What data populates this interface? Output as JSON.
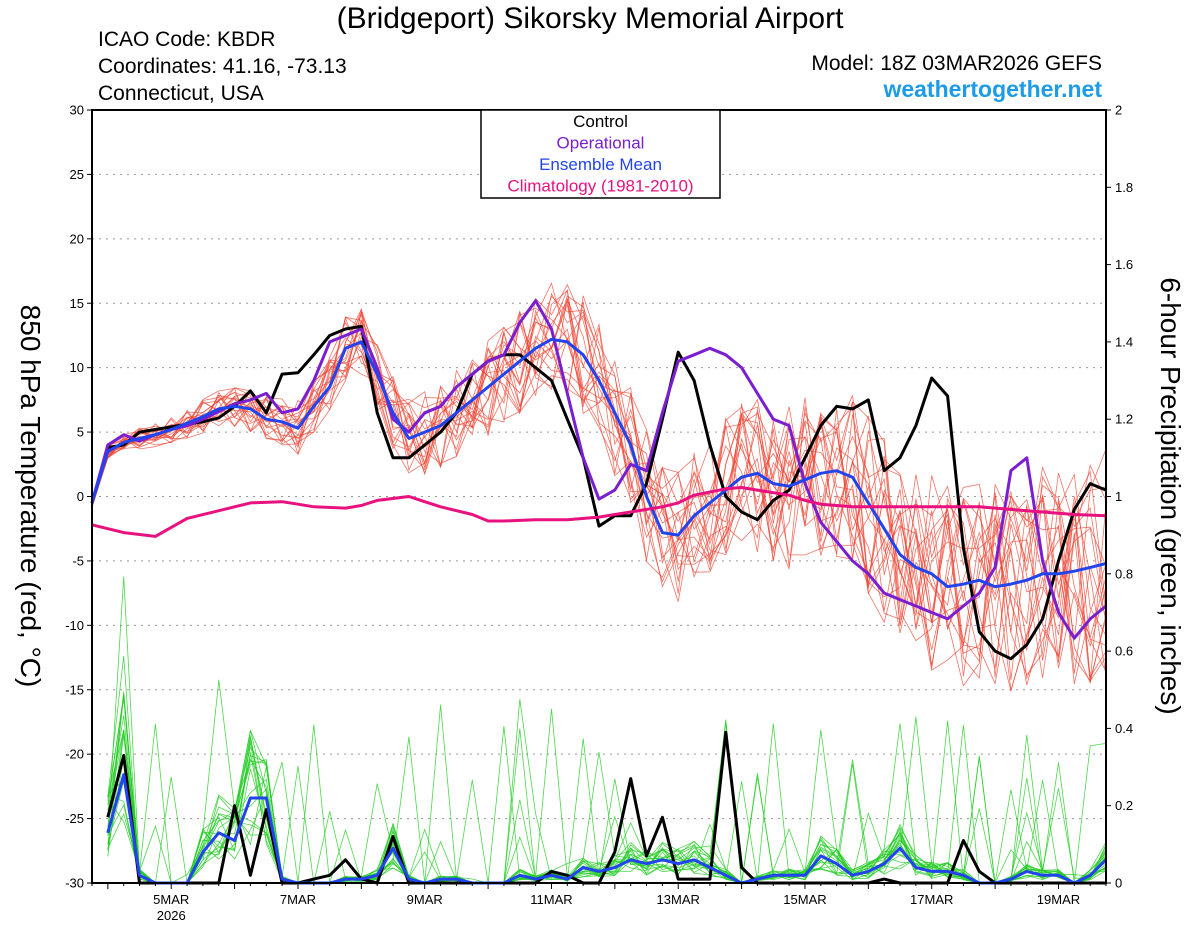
{
  "header": {
    "title": "(Bridgeport) Sikorsky Memorial Airport",
    "icao": "ICAO Code: KBDR",
    "coordinates": "Coordinates: 41.16, -73.13",
    "region": "Connecticut, USA",
    "model": "Model: 18Z 03MAR2026 GEFS",
    "website": "weathertogether.net"
  },
  "colors": {
    "control": "#000000",
    "operational": "#7a1ed0",
    "ensemble_mean": "#2244ee",
    "climatology": "#e8117f",
    "members_temp": "#ee4433",
    "members_precip": "#22cc22",
    "website": "#1e9be6"
  },
  "chart_data": {
    "type": "line",
    "title": "(Bridgeport) Sikorsky Memorial Airport",
    "ylabel_left": "850 hPa Temperature (red, °C)",
    "ylabel_right": "6-hour Precipitation (green, inches)",
    "x_unit": "days since 00Z 03MAR2026",
    "xlim": [
      0.75,
      16.75
    ],
    "ylim_left": [
      -30,
      30
    ],
    "ylim_right": [
      0,
      2
    ],
    "y_ticks_left": [
      -30,
      -25,
      -20,
      -15,
      -10,
      -5,
      0,
      5,
      10,
      15,
      20,
      25,
      30
    ],
    "y_ticks_right": [
      "0",
      "0.2",
      "0.4",
      "0.6",
      "0.8",
      "1",
      "1.2",
      "1.4",
      "1.6",
      "1.8",
      "2"
    ],
    "x_ticks": [
      {
        "day": 2,
        "label": "5MAR",
        "sublabel": "2026"
      },
      {
        "day": 4,
        "label": "7MAR"
      },
      {
        "day": 6,
        "label": "9MAR"
      },
      {
        "day": 8,
        "label": "11MAR"
      },
      {
        "day": 10,
        "label": "13MAR"
      },
      {
        "day": 12,
        "label": "15MAR"
      },
      {
        "day": 14,
        "label": "17MAR"
      },
      {
        "day": 16,
        "label": "19MAR"
      }
    ],
    "grid": true,
    "legend": {
      "position": "top-center",
      "entries": [
        {
          "label": "Control",
          "color": "#000000"
        },
        {
          "label": "Operational",
          "color": "#7a1ed0"
        },
        {
          "label": "Ensemble Mean",
          "color": "#2244ee"
        },
        {
          "label": "Climatology (1981-2010)",
          "color": "#e8117f"
        }
      ]
    },
    "temperature_series": [
      {
        "name": "Control",
        "x": [
          0.75,
          1.0,
          1.25,
          1.5,
          1.75,
          2.0,
          2.25,
          2.5,
          2.75,
          3.0,
          3.25,
          3.5,
          3.75,
          4.0,
          4.25,
          4.5,
          4.75,
          5.0,
          5.25,
          5.5,
          5.75,
          6.0,
          6.25,
          6.5,
          6.75,
          7.0,
          7.25,
          7.5,
          7.75,
          8.0,
          8.25,
          8.5,
          8.75,
          9.0,
          9.25,
          9.5,
          9.75,
          10.0,
          10.25,
          10.5,
          10.75,
          11.0,
          11.25,
          11.5,
          11.75,
          12.0,
          12.25,
          12.5,
          12.75,
          13.0,
          13.25,
          13.5,
          13.75,
          14.0,
          14.25,
          14.5,
          14.75,
          15.0,
          15.25,
          15.5,
          15.75,
          16.0,
          16.25,
          16.5,
          16.75
        ],
        "y": [
          -0.5,
          3.8,
          4.0,
          5.0,
          5.2,
          5.4,
          5.6,
          5.8,
          6.1,
          7.0,
          8.2,
          6.5,
          9.5,
          9.6,
          11.0,
          12.5,
          13.0,
          13.2,
          6.5,
          3.0,
          3.0,
          4.0,
          5.0,
          6.5,
          9.5,
          10.5,
          11.0,
          11.0,
          10.0,
          9.0,
          6.0,
          3.0,
          -2.3,
          -1.5,
          -1.5,
          1.0,
          6.0,
          11.2,
          9.0,
          4.0,
          0.0,
          -1.2,
          -1.8,
          -0.3,
          0.5,
          3.0,
          5.5,
          7.0,
          6.8,
          7.5,
          2.0,
          3.0,
          5.5,
          9.2,
          7.8,
          -4.0,
          -10.5,
          -12.0,
          -12.6,
          -11.5,
          -9.5,
          -5.0,
          -1.0,
          1.0,
          0.5
        ]
      },
      {
        "name": "Operational",
        "x": [
          0.75,
          1.0,
          1.25,
          1.5,
          1.75,
          2.0,
          2.25,
          2.5,
          2.75,
          3.0,
          3.25,
          3.5,
          3.75,
          4.0,
          4.25,
          4.5,
          4.75,
          5.0,
          5.25,
          5.5,
          5.75,
          6.0,
          6.25,
          6.5,
          6.75,
          7.0,
          7.25,
          7.5,
          7.75,
          8.0,
          8.25,
          8.5,
          8.75,
          9.0,
          9.25,
          9.5,
          9.75,
          10.0,
          10.25,
          10.5,
          10.75,
          11.0,
          11.25,
          11.5,
          11.75,
          12.0,
          12.25,
          12.5,
          12.75,
          13.0,
          13.25,
          13.5,
          13.75,
          14.0,
          14.25,
          14.5,
          14.75,
          15.0,
          15.25,
          15.5,
          15.75,
          16.0,
          16.25,
          16.5,
          16.75
        ],
        "y": [
          -0.5,
          4.0,
          4.8,
          4.3,
          4.8,
          5.2,
          5.5,
          6.0,
          6.6,
          7.2,
          7.5,
          8.0,
          6.5,
          6.8,
          9.0,
          12.0,
          12.5,
          13.0,
          10.0,
          6.0,
          5.0,
          6.5,
          7.0,
          8.5,
          9.5,
          10.5,
          11.0,
          13.5,
          15.2,
          13.0,
          8.0,
          3.0,
          -0.2,
          0.5,
          2.5,
          2.0,
          6.5,
          10.5,
          11.0,
          11.5,
          11.0,
          10.0,
          8.0,
          6.0,
          5.5,
          1.0,
          -2.0,
          -3.5,
          -5.0,
          -6.0,
          -7.5,
          -8.0,
          -8.5,
          -9.0,
          -9.5,
          -8.5,
          -7.5,
          -5.5,
          2.0,
          3.0,
          -5.0,
          -9.0,
          -11.0,
          -9.5,
          -8.5
        ]
      },
      {
        "name": "Ensemble Mean",
        "x": [
          0.75,
          1.0,
          1.25,
          1.5,
          1.75,
          2.0,
          2.25,
          2.5,
          2.75,
          3.0,
          3.25,
          3.5,
          3.75,
          4.0,
          4.25,
          4.5,
          4.75,
          5.0,
          5.25,
          5.5,
          5.75,
          6.0,
          6.25,
          6.5,
          6.75,
          7.0,
          7.25,
          7.5,
          7.75,
          8.0,
          8.25,
          8.5,
          8.75,
          9.0,
          9.25,
          9.5,
          9.75,
          10.0,
          10.25,
          10.5,
          10.75,
          11.0,
          11.25,
          11.5,
          11.75,
          12.0,
          12.25,
          12.5,
          12.75,
          13.0,
          13.25,
          13.5,
          13.75,
          14.0,
          14.25,
          14.5,
          14.75,
          15.0,
          15.25,
          15.5,
          15.75,
          16.0,
          16.25,
          16.5,
          16.75
        ],
        "y": [
          -0.5,
          3.5,
          4.2,
          4.5,
          4.8,
          5.2,
          5.7,
          6.2,
          6.8,
          7.0,
          6.8,
          6.0,
          5.8,
          5.3,
          7.0,
          8.5,
          11.5,
          12.0,
          9.5,
          6.5,
          4.5,
          5.0,
          5.5,
          6.5,
          7.5,
          8.5,
          9.5,
          10.5,
          11.5,
          12.2,
          12.0,
          11.0,
          9.0,
          6.5,
          4.0,
          0.0,
          -2.8,
          -3.0,
          -1.5,
          -0.5,
          0.5,
          1.5,
          1.8,
          1.0,
          0.8,
          1.3,
          1.8,
          2.0,
          1.5,
          -0.5,
          -2.5,
          -4.5,
          -5.5,
          -6.0,
          -7.0,
          -6.8,
          -6.5,
          -7.0,
          -6.8,
          -6.5,
          -6.0,
          -6.0,
          -5.8,
          -5.5,
          -5.2
        ]
      },
      {
        "name": "Climatology (1981-2010)",
        "x": [
          0.75,
          1.0,
          1.25,
          1.75,
          2.0,
          2.25,
          2.75,
          3.0,
          3.25,
          3.75,
          4.0,
          4.25,
          4.75,
          5.0,
          5.25,
          5.75,
          6.0,
          6.25,
          6.75,
          7.0,
          7.25,
          7.75,
          8.0,
          8.25,
          8.75,
          9.0,
          9.25,
          9.75,
          10.0,
          10.25,
          10.75,
          11.0,
          11.25,
          11.75,
          12.0,
          12.25,
          12.75,
          13.0,
          13.25,
          13.75,
          14.0,
          14.25,
          14.75,
          15.0,
          15.25,
          15.75,
          16.0,
          16.25,
          16.75
        ],
        "y": [
          -2.2,
          -2.5,
          -2.8,
          -3.1,
          -2.4,
          -1.7,
          -1.1,
          -0.8,
          -0.5,
          -0.4,
          -0.6,
          -0.8,
          -0.9,
          -0.7,
          -0.3,
          0.0,
          -0.4,
          -0.8,
          -1.4,
          -1.9,
          -1.9,
          -1.8,
          -1.8,
          -1.8,
          -1.6,
          -1.4,
          -1.2,
          -0.8,
          -0.5,
          0.1,
          0.6,
          0.7,
          0.5,
          0.1,
          -0.3,
          -0.6,
          -0.8,
          -0.8,
          -0.8,
          -0.8,
          -0.8,
          -0.8,
          -0.8,
          -0.9,
          -1.0,
          -1.2,
          -1.3,
          -1.4,
          -1.5
        ]
      }
    ],
    "precipitation_series": [
      {
        "name": "Control",
        "x": [
          1.0,
          1.25,
          1.5,
          1.75,
          2.0,
          2.25,
          2.5,
          2.75,
          3.0,
          3.25,
          3.5,
          3.75,
          4.0,
          4.25,
          4.5,
          4.75,
          5.0,
          5.25,
          5.5,
          5.75,
          6.0,
          6.25,
          6.5,
          6.75,
          7.0,
          7.25,
          7.5,
          7.75,
          8.0,
          8.25,
          8.5,
          8.75,
          9.0,
          9.25,
          9.5,
          9.75,
          10.0,
          10.25,
          10.5,
          10.75,
          11.0,
          11.25,
          11.5,
          11.75,
          12.0,
          12.25,
          12.5,
          12.75,
          13.0,
          13.25,
          13.5,
          13.75,
          14.0,
          14.25,
          14.5,
          14.75,
          15.0,
          15.25,
          15.5,
          15.75,
          16.0,
          16.25,
          16.5,
          16.75
        ],
        "y": [
          0.17,
          0.33,
          0.0,
          0.0,
          0.0,
          0.0,
          0.0,
          0.0,
          0.2,
          0.02,
          0.19,
          0.0,
          0.0,
          0.01,
          0.02,
          0.06,
          0.01,
          0.0,
          0.12,
          0.0,
          0.0,
          0.0,
          0.0,
          0.0,
          0.0,
          0.0,
          0.0,
          0.0,
          0.03,
          0.02,
          0.0,
          0.0,
          0.08,
          0.27,
          0.07,
          0.17,
          0.01,
          0.01,
          0.01,
          0.39,
          0.04,
          0.0,
          0.0,
          0.0,
          0.0,
          0.0,
          0.0,
          0.0,
          0.0,
          0.01,
          0.0,
          0.0,
          0.0,
          0.0,
          0.11,
          0.03,
          0.0,
          0.0,
          0.0,
          0.0,
          0.0,
          0.0,
          0.0,
          0.0
        ]
      },
      {
        "name": "Ensemble Mean",
        "x": [
          1.0,
          1.25,
          1.5,
          1.75,
          2.0,
          2.25,
          2.5,
          2.75,
          3.0,
          3.25,
          3.5,
          3.75,
          4.0,
          4.25,
          4.5,
          4.75,
          5.0,
          5.25,
          5.5,
          5.75,
          6.0,
          6.25,
          6.5,
          6.75,
          7.0,
          7.25,
          7.5,
          7.75,
          8.0,
          8.25,
          8.5,
          8.75,
          9.0,
          9.25,
          9.5,
          9.75,
          10.0,
          10.25,
          10.5,
          10.75,
          11.0,
          11.25,
          11.5,
          11.75,
          12.0,
          12.25,
          12.5,
          12.75,
          13.0,
          13.25,
          13.5,
          13.75,
          14.0,
          14.25,
          14.5,
          14.75,
          15.0,
          15.25,
          15.5,
          15.75,
          16.0,
          16.25,
          16.5,
          16.75
        ],
        "y": [
          0.13,
          0.28,
          0.02,
          0.0,
          0.0,
          0.0,
          0.08,
          0.13,
          0.11,
          0.22,
          0.22,
          0.01,
          0.0,
          0.0,
          0.0,
          0.01,
          0.01,
          0.02,
          0.09,
          0.01,
          0.0,
          0.01,
          0.01,
          0.0,
          0.0,
          0.0,
          0.02,
          0.01,
          0.02,
          0.01,
          0.04,
          0.03,
          0.04,
          0.06,
          0.05,
          0.06,
          0.05,
          0.06,
          0.04,
          0.02,
          0.0,
          0.01,
          0.02,
          0.02,
          0.02,
          0.07,
          0.05,
          0.02,
          0.03,
          0.05,
          0.09,
          0.04,
          0.03,
          0.03,
          0.02,
          0.0,
          0.0,
          0.01,
          0.03,
          0.02,
          0.02,
          0.0,
          0.02,
          0.06
        ]
      }
    ]
  }
}
